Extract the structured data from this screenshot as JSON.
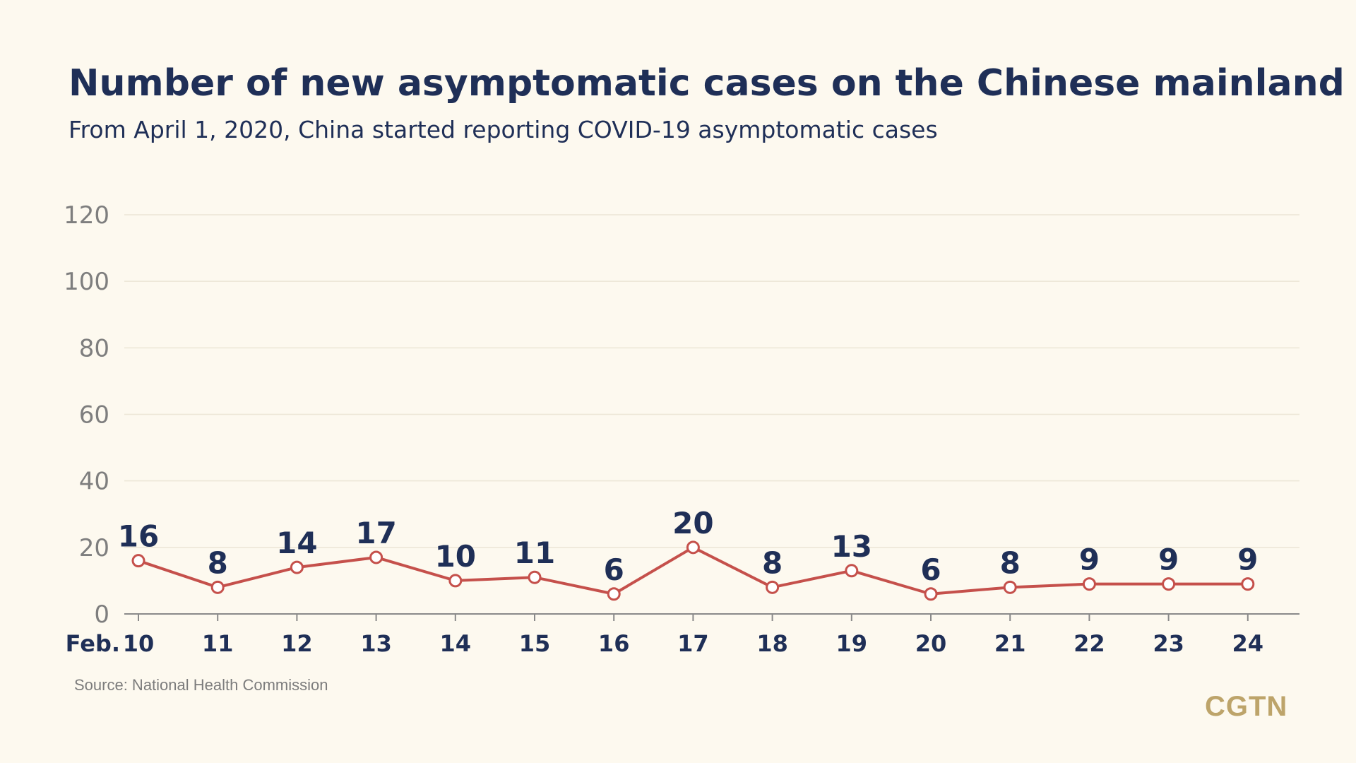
{
  "header": {
    "title": "Number of new asymptomatic cases on the Chinese mainland",
    "subtitle": "From April 1, 2020, China started reporting COVID-19 asymptomatic cases"
  },
  "footer": {
    "source": "Source: National Health Commission",
    "brand": "CGTN"
  },
  "colors": {
    "background": "#fdf9ef",
    "title": "#1f2f57",
    "line": "#c5504b",
    "grid": "#ece6d6",
    "axis_tick": "#7e7e7e",
    "brand": "#bda46a"
  },
  "chart_data": {
    "type": "line",
    "title": "Number of new asymptomatic cases on the Chinese mainland",
    "subtitle": "From April 1, 2020, China started reporting COVID-19 asymptomatic cases",
    "x_prefix": "Feb.",
    "categories": [
      "10",
      "11",
      "12",
      "13",
      "14",
      "15",
      "16",
      "17",
      "18",
      "19",
      "20",
      "21",
      "22",
      "23",
      "24"
    ],
    "series": [
      {
        "values": [
          16,
          8,
          14,
          17,
          10,
          11,
          6,
          20,
          8,
          13,
          6,
          8,
          9,
          9,
          9
        ]
      }
    ],
    "y_ticks": [
      0,
      20,
      40,
      60,
      80,
      100,
      120
    ],
    "ylim": [
      0,
      120
    ],
    "grid": true,
    "legend": "none",
    "marker": "hollow-circle"
  }
}
